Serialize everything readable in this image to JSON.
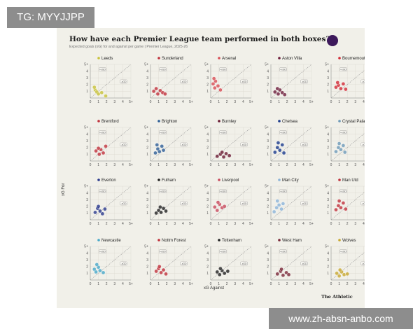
{
  "watermark_top": "TG: MYYJJPP",
  "watermark_bottom": "www.zh-absn-anbo.com",
  "title": "How have each Premier League team performed in both boxes?",
  "subtitle": "Expected goals (xG) for and against per game | Premier League, 2025-26",
  "footer": "The Athletic",
  "chart_data": {
    "type": "scatter",
    "title": "How have each Premier League team performed in both boxes?",
    "subtitle": "Expected goals (xG) for and against per game | Premier League, 2025-26",
    "xlabel": "xG Against",
    "ylabel": "xG For",
    "xlim": [
      0,
      5
    ],
    "ylim": [
      0,
      5
    ],
    "tick_labels": [
      "0",
      "1",
      "2",
      "3",
      "4",
      "5+"
    ],
    "quadrant_labels": [
      "+xGD",
      "-xGD"
    ],
    "reference_line": "y = x",
    "panels": [
      {
        "team": "Leeds",
        "color": "#c8c23a",
        "points": [
          [
            0.6,
            1.2
          ],
          [
            0.8,
            0.9
          ],
          [
            1.0,
            0.6
          ],
          [
            1.4,
            0.8
          ],
          [
            1.9,
            0.3
          ],
          [
            0.5,
            1.6
          ]
        ]
      },
      {
        "team": "Sunderland",
        "color": "#c0323c",
        "points": [
          [
            0.4,
            1.0
          ],
          [
            0.9,
            0.6
          ],
          [
            1.2,
            1.1
          ],
          [
            1.5,
            0.8
          ],
          [
            1.8,
            0.6
          ],
          [
            0.7,
            1.4
          ]
        ]
      },
      {
        "team": "Arsenal",
        "color": "#d84e55",
        "points": [
          [
            0.3,
            2.1
          ],
          [
            0.5,
            1.5
          ],
          [
            0.6,
            2.5
          ],
          [
            0.9,
            1.8
          ],
          [
            1.2,
            1.2
          ],
          [
            0.4,
            2.9
          ]
        ]
      },
      {
        "team": "Aston Villa",
        "color": "#6e1e3c",
        "points": [
          [
            0.5,
            0.9
          ],
          [
            0.9,
            0.6
          ],
          [
            1.1,
            1.2
          ],
          [
            1.4,
            0.8
          ],
          [
            1.7,
            0.5
          ],
          [
            0.8,
            1.4
          ]
        ]
      },
      {
        "team": "Bournemouth",
        "color": "#d22a36",
        "points": [
          [
            0.6,
            1.6
          ],
          [
            0.9,
            1.9
          ],
          [
            1.2,
            1.4
          ],
          [
            1.5,
            2.1
          ],
          [
            1.8,
            1.3
          ],
          [
            0.8,
            2.3
          ]
        ]
      },
      {
        "team": "Brentford",
        "color": "#c0323c",
        "points": [
          [
            0.7,
            1.5
          ],
          [
            1.1,
            1.0
          ],
          [
            1.3,
            1.7
          ],
          [
            1.6,
            1.2
          ],
          [
            1.9,
            2.2
          ],
          [
            1.0,
            1.9
          ]
        ]
      },
      {
        "team": "Brighton",
        "color": "#2e5e96",
        "points": [
          [
            0.6,
            1.2
          ],
          [
            0.9,
            1.8
          ],
          [
            1.1,
            1.4
          ],
          [
            1.4,
            2.2
          ],
          [
            1.6,
            1.6
          ],
          [
            0.8,
            2.4
          ]
        ]
      },
      {
        "team": "Burnley",
        "color": "#6a1a32",
        "points": [
          [
            0.8,
            0.7
          ],
          [
            1.2,
            1.0
          ],
          [
            1.6,
            0.6
          ],
          [
            1.9,
            1.1
          ],
          [
            2.3,
            0.8
          ],
          [
            1.4,
            1.3
          ]
        ]
      },
      {
        "team": "Chelsea",
        "color": "#1c3b8c",
        "points": [
          [
            0.5,
            1.3
          ],
          [
            0.8,
            2.0
          ],
          [
            1.1,
            1.6
          ],
          [
            1.4,
            2.4
          ],
          [
            1.6,
            1.2
          ],
          [
            0.9,
            2.7
          ]
        ]
      },
      {
        "team": "Crystal Palace",
        "color": "#6e9ab8",
        "points": [
          [
            0.6,
            1.4
          ],
          [
            0.9,
            2.0
          ],
          [
            1.2,
            1.7
          ],
          [
            1.5,
            2.3
          ],
          [
            1.7,
            1.3
          ],
          [
            1.0,
            2.6
          ]
        ]
      },
      {
        "team": "Everton",
        "color": "#2a3a8c",
        "points": [
          [
            0.6,
            1.1
          ],
          [
            0.9,
            1.7
          ],
          [
            1.2,
            1.3
          ],
          [
            1.5,
            0.9
          ],
          [
            1.8,
            1.6
          ],
          [
            1.0,
            2.0
          ]
        ]
      },
      {
        "team": "Fulham",
        "color": "#222222",
        "points": [
          [
            0.7,
            1.0
          ],
          [
            1.0,
            1.4
          ],
          [
            1.3,
            1.1
          ],
          [
            1.6,
            1.7
          ],
          [
            1.9,
            1.3
          ],
          [
            1.2,
            1.9
          ]
        ]
      },
      {
        "team": "Liverpool",
        "color": "#c84a5c",
        "points": [
          [
            0.5,
            1.9
          ],
          [
            0.8,
            1.4
          ],
          [
            1.1,
            2.3
          ],
          [
            1.4,
            1.8
          ],
          [
            1.7,
            2.0
          ],
          [
            0.9,
            2.6
          ]
        ]
      },
      {
        "team": "Man City",
        "color": "#8cb4d8",
        "points": [
          [
            0.4,
            1.2
          ],
          [
            0.7,
            1.8
          ],
          [
            1.0,
            2.2
          ],
          [
            1.3,
            1.6
          ],
          [
            1.5,
            2.4
          ],
          [
            0.8,
            2.8
          ]
        ]
      },
      {
        "team": "Man Utd",
        "color": "#c0323c",
        "points": [
          [
            0.6,
            1.5
          ],
          [
            0.9,
            2.1
          ],
          [
            1.2,
            1.8
          ],
          [
            1.5,
            2.5
          ],
          [
            1.8,
            1.6
          ],
          [
            1.0,
            2.8
          ]
        ]
      },
      {
        "team": "Newcastle",
        "color": "#48a8c8",
        "points": [
          [
            0.5,
            1.6
          ],
          [
            0.7,
            1.2
          ],
          [
            1.0,
            1.9
          ],
          [
            1.2,
            1.4
          ],
          [
            1.6,
            1.1
          ],
          [
            0.8,
            2.3
          ]
        ]
      },
      {
        "team": "Nottm Forest",
        "color": "#c0323c",
        "points": [
          [
            0.7,
            1.3
          ],
          [
            1.0,
            1.7
          ],
          [
            1.3,
            1.1
          ],
          [
            1.6,
            1.5
          ],
          [
            1.9,
            0.9
          ],
          [
            1.1,
            2.0
          ]
        ]
      },
      {
        "team": "Tottenham",
        "color": "#222222",
        "points": [
          [
            0.8,
            1.2
          ],
          [
            1.1,
            0.8
          ],
          [
            1.4,
            1.4
          ],
          [
            1.7,
            1.0
          ],
          [
            2.1,
            1.3
          ],
          [
            1.2,
            1.7
          ]
        ]
      },
      {
        "team": "West Ham",
        "color": "#7a2838",
        "points": [
          [
            0.8,
            0.9
          ],
          [
            1.2,
            1.3
          ],
          [
            1.5,
            0.7
          ],
          [
            1.9,
            1.1
          ],
          [
            2.2,
            0.8
          ],
          [
            1.3,
            1.6
          ]
        ]
      },
      {
        "team": "Wolves",
        "color": "#c8a830",
        "points": [
          [
            0.7,
            1.0
          ],
          [
            1.0,
            0.6
          ],
          [
            1.3,
            1.2
          ],
          [
            1.6,
            0.8
          ],
          [
            2.0,
            0.9
          ],
          [
            1.1,
            1.5
          ]
        ]
      }
    ]
  }
}
